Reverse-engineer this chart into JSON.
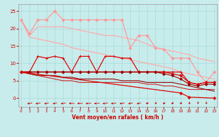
{
  "bg_color": "#c8ecec",
  "grid_color": "#a8d8d8",
  "title": "Vent moyen/en rafales ( km/h )",
  "x_ticks": [
    0,
    1,
    2,
    3,
    4,
    5,
    6,
    7,
    8,
    9,
    10,
    11,
    12,
    13,
    14,
    15,
    16,
    17,
    18,
    19,
    20,
    21,
    22,
    23
  ],
  "y_ticks": [
    0,
    5,
    10,
    15,
    20,
    25
  ],
  "ylim": [
    -2.5,
    27
  ],
  "xlim": [
    -0.3,
    23.3
  ],
  "lines": [
    {
      "x": [
        0,
        1,
        2,
        3,
        4,
        5,
        6,
        7,
        8,
        9,
        10,
        11,
        12,
        13,
        14,
        15,
        16,
        17,
        18,
        19,
        20,
        21,
        22,
        23
      ],
      "y": [
        22.5,
        18.5,
        22.5,
        22.5,
        25.0,
        22.5,
        22.5,
        22.5,
        22.5,
        22.5,
        22.5,
        22.5,
        22.5,
        14.5,
        18.0,
        18.0,
        14.5,
        14.0,
        11.5,
        11.5,
        11.5,
        7.5,
        4.5,
        7.5
      ],
      "color": "#ff9999",
      "lw": 0.9,
      "marker": "D",
      "ms": 2.0
    },
    {
      "x": [
        0,
        1,
        2,
        3,
        4,
        5,
        6,
        7,
        8,
        9,
        10,
        11,
        12,
        13,
        14,
        15,
        16,
        17,
        18,
        19,
        20,
        21,
        22,
        23
      ],
      "y": [
        22.5,
        18.0,
        20.5,
        20.5,
        20.5,
        20.5,
        20.0,
        19.5,
        19.0,
        18.5,
        18.0,
        18.0,
        17.5,
        17.0,
        16.5,
        15.5,
        14.5,
        14.0,
        13.5,
        13.0,
        12.5,
        11.5,
        11.0,
        10.5
      ],
      "color": "#ffaaaa",
      "lw": 0.9,
      "marker": null,
      "ms": 0
    },
    {
      "x": [
        0,
        1,
        2,
        3,
        4,
        5,
        6,
        7,
        8,
        9,
        10,
        11,
        12,
        13,
        14,
        15,
        16,
        17,
        18,
        19,
        20,
        21,
        22,
        23
      ],
      "y": [
        22.5,
        17.5,
        17.0,
        16.5,
        16.0,
        15.5,
        14.5,
        14.0,
        13.5,
        13.0,
        12.5,
        12.0,
        11.5,
        11.0,
        10.5,
        10.0,
        9.5,
        9.0,
        8.5,
        7.5,
        7.0,
        6.5,
        6.0,
        5.5
      ],
      "color": "#ffaaaa",
      "lw": 0.9,
      "marker": null,
      "ms": 0
    },
    {
      "x": [
        0,
        1,
        2,
        3,
        4,
        5,
        6,
        7,
        8,
        9,
        10,
        11,
        12,
        13,
        14,
        15,
        16,
        17,
        18,
        19,
        20,
        21,
        22,
        23
      ],
      "y": [
        7.5,
        7.5,
        12.0,
        11.5,
        12.0,
        11.5,
        7.5,
        12.0,
        12.0,
        7.5,
        12.0,
        12.0,
        11.5,
        11.5,
        7.5,
        7.5,
        7.5,
        7.5,
        7.5,
        7.5,
        4.5,
        4.0,
        4.5,
        4.5
      ],
      "color": "#dd0000",
      "lw": 0.9,
      "marker": "+",
      "ms": 3.0
    },
    {
      "x": [
        0,
        1,
        2,
        3,
        4,
        5,
        6,
        7,
        8,
        9,
        10,
        11,
        12,
        13,
        14,
        15,
        16,
        17,
        18,
        19,
        20,
        21,
        22,
        23
      ],
      "y": [
        7.5,
        7.5,
        7.5,
        7.5,
        7.5,
        7.5,
        7.5,
        7.5,
        7.5,
        7.5,
        7.5,
        7.5,
        7.5,
        7.5,
        7.5,
        7.5,
        7.5,
        7.5,
        7.0,
        6.5,
        4.5,
        4.0,
        4.5,
        4.5
      ],
      "color": "#dd0000",
      "lw": 0.9,
      "marker": "D",
      "ms": 2.0
    },
    {
      "x": [
        0,
        1,
        2,
        3,
        4,
        5,
        6,
        7,
        8,
        9,
        10,
        11,
        12,
        13,
        14,
        15,
        16,
        17,
        18,
        19,
        20,
        21,
        22,
        23
      ],
      "y": [
        7.5,
        7.5,
        7.5,
        7.5,
        7.5,
        7.5,
        7.5,
        7.5,
        7.5,
        7.5,
        7.5,
        7.5,
        7.5,
        7.5,
        7.5,
        7.5,
        7.5,
        7.0,
        6.5,
        5.5,
        4.0,
        3.5,
        4.0,
        4.0
      ],
      "color": "#990000",
      "lw": 0.8,
      "marker": "D",
      "ms": 1.8
    },
    {
      "x": [
        0,
        1,
        2,
        3,
        4,
        5,
        6,
        7,
        8,
        9,
        10,
        11,
        12,
        13,
        14,
        15,
        16,
        17,
        18,
        19,
        20,
        21,
        22,
        23
      ],
      "y": [
        7.5,
        7.0,
        6.5,
        6.0,
        5.5,
        5.0,
        5.0,
        4.5,
        4.5,
        4.5,
        4.5,
        4.5,
        4.5,
        4.5,
        4.5,
        4.0,
        4.0,
        3.5,
        3.5,
        3.0,
        2.5,
        2.5,
        2.5,
        2.5
      ],
      "color": "#cc2222",
      "lw": 0.8,
      "marker": null,
      "ms": 0
    },
    {
      "x": [
        0,
        1,
        2,
        3,
        4,
        5,
        6,
        7,
        8,
        9,
        10,
        11,
        12,
        13,
        14,
        15,
        16,
        17,
        18,
        19,
        20,
        21,
        22,
        23
      ],
      "y": [
        7.5,
        7.0,
        6.5,
        6.5,
        6.5,
        6.0,
        6.0,
        5.5,
        5.5,
        5.5,
        5.5,
        5.5,
        5.0,
        5.0,
        5.0,
        4.5,
        4.5,
        4.5,
        4.5,
        4.0,
        3.5,
        3.0,
        2.5,
        2.0
      ],
      "color": "#990000",
      "lw": 0.8,
      "marker": null,
      "ms": 0
    },
    {
      "x": [
        0,
        19,
        20,
        23
      ],
      "y": [
        7.5,
        1.5,
        0.3,
        0.0
      ],
      "color": "#dd0000",
      "lw": 0.9,
      "marker": "D",
      "ms": 2.0
    }
  ],
  "arrow_angles": [
    270,
    248,
    248,
    242,
    238,
    250,
    270,
    270,
    262,
    260,
    255,
    258,
    248,
    242,
    238,
    222,
    210,
    220,
    218,
    215,
    210,
    202,
    205,
    45
  ],
  "arrow_color": "#cc0000"
}
